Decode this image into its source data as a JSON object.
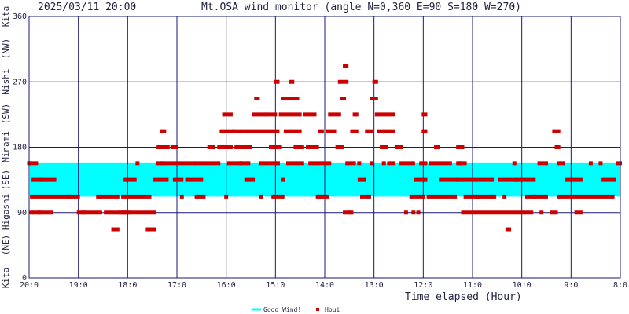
{
  "header": {
    "datetime": "2025/03/11 20:00",
    "title": "Mt.OSA wind monitor (angle N=0,360 E=90 S=180 W=270)"
  },
  "chart_data": {
    "type": "scatter",
    "title": "Mt.OSA wind monitor (angle N=0,360 E=90 S=180 W=270)",
    "xlabel": "Time elapsed (Hour)",
    "ylabel": "Kita (NE) Higashi (SE) Minami (SW) Nishi (NW) Kita",
    "y_side_labels": [
      "Kita",
      "(NE)",
      "Higashi",
      "(SE)",
      "Minami",
      "(SW)",
      "Nishi",
      "(NW)",
      "Kita"
    ],
    "ylim": [
      0,
      360
    ],
    "yticks": [
      0,
      90,
      180,
      270,
      360
    ],
    "xlim": [
      20,
      8
    ],
    "xticks": [
      "20:0",
      "19:0",
      "18:0",
      "17:0",
      "16:0",
      "15:0",
      "14:0",
      "13:0",
      "12:0",
      "11:0",
      "10:0",
      "9:0",
      "8:0"
    ],
    "grid": true,
    "good_wind_band": [
      112,
      158
    ],
    "band_color": "#00ffff",
    "point_color": "#cc0000",
    "grid_color": "#191970",
    "legend": {
      "position": "bottom-center",
      "entries": [
        {
          "label": "Good Wind!!",
          "color": "#00ffff",
          "shape": "line"
        },
        {
          "label": "Houi",
          "color": "#cc0000",
          "shape": "square"
        }
      ]
    },
    "series": [
      {
        "name": "Houi",
        "segments": [
          [
            20.0,
            19.85,
            158
          ],
          [
            19.92,
            19.48,
            135
          ],
          [
            19.95,
            19.0,
            112
          ],
          [
            19.0,
            18.55,
            90
          ],
          [
            19.9,
            19.55,
            90
          ],
          [
            18.55,
            18.2,
            112
          ],
          [
            18.45,
            18.0,
            90
          ],
          [
            18.3,
            18.2,
            67
          ],
          [
            18.1,
            17.55,
            112
          ],
          [
            18.15,
            17.45,
            90
          ],
          [
            18.05,
            17.85,
            135
          ],
          [
            17.6,
            17.45,
            67
          ],
          [
            17.4,
            16.65,
            158
          ],
          [
            17.45,
            17.2,
            135
          ],
          [
            17.38,
            17.28,
            180
          ],
          [
            17.32,
            17.25,
            202
          ],
          [
            17.25,
            17.18,
            180
          ],
          [
            17.1,
            17.0,
            180
          ],
          [
            17.05,
            16.9,
            135
          ],
          [
            16.6,
            16.15,
            158
          ],
          [
            16.8,
            16.5,
            135
          ],
          [
            16.55,
            16.45,
            112
          ],
          [
            16.35,
            16.25,
            180
          ],
          [
            16.15,
            15.9,
            180
          ],
          [
            16.1,
            15.85,
            202
          ],
          [
            16.05,
            15.9,
            225
          ],
          [
            15.85,
            15.6,
            202
          ],
          [
            15.8,
            15.5,
            180
          ],
          [
            15.95,
            15.6,
            158
          ],
          [
            15.6,
            15.45,
            135
          ],
          [
            15.55,
            15.2,
            202
          ],
          [
            15.45,
            15.25,
            225
          ],
          [
            15.4,
            15.35,
            247
          ],
          [
            15.2,
            15.0,
            225
          ],
          [
            15.15,
            14.95,
            202
          ],
          [
            15.1,
            14.9,
            180
          ],
          [
            15.3,
            15.0,
            158
          ],
          [
            15.0,
            14.95,
            270
          ],
          [
            15.05,
            14.85,
            112
          ],
          [
            14.9,
            14.5,
            225
          ],
          [
            14.85,
            14.55,
            247
          ],
          [
            14.7,
            14.65,
            270
          ],
          [
            14.8,
            14.5,
            202
          ],
          [
            14.6,
            14.45,
            180
          ],
          [
            14.75,
            14.45,
            158
          ],
          [
            14.4,
            14.2,
            225
          ],
          [
            14.35,
            14.15,
            180
          ],
          [
            14.3,
            13.9,
            158
          ],
          [
            14.1,
            14.05,
            202
          ],
          [
            14.15,
            13.95,
            112
          ],
          [
            13.9,
            13.7,
            225
          ],
          [
            13.95,
            13.8,
            202
          ],
          [
            13.75,
            13.65,
            180
          ],
          [
            13.7,
            13.55,
            270
          ],
          [
            13.6,
            13.55,
            292
          ],
          [
            13.65,
            13.6,
            247
          ],
          [
            13.55,
            13.4,
            158
          ],
          [
            13.45,
            13.35,
            202
          ],
          [
            13.4,
            13.35,
            225
          ],
          [
            13.6,
            13.45,
            90
          ],
          [
            13.3,
            13.2,
            135
          ],
          [
            13.25,
            13.15,
            112
          ],
          [
            13.15,
            13.05,
            202
          ],
          [
            13.05,
            12.95,
            247
          ],
          [
            13.0,
            12.95,
            270
          ],
          [
            12.95,
            12.6,
            225
          ],
          [
            12.9,
            12.6,
            202
          ],
          [
            12.85,
            12.75,
            180
          ],
          [
            12.7,
            12.6,
            158
          ],
          [
            12.55,
            12.45,
            180
          ],
          [
            12.45,
            12.2,
            158
          ],
          [
            12.25,
            12.0,
            112
          ],
          [
            12.15,
            11.95,
            135
          ],
          [
            12.05,
            11.95,
            158
          ],
          [
            12.0,
            11.95,
            225
          ],
          [
            12.0,
            11.95,
            202
          ],
          [
            11.75,
            11.7,
            180
          ],
          [
            11.9,
            11.35,
            112
          ],
          [
            11.85,
            11.45,
            158
          ],
          [
            11.65,
            11.3,
            135
          ],
          [
            11.3,
            11.2,
            180
          ],
          [
            11.3,
            11.15,
            158
          ],
          [
            11.3,
            10.6,
            135
          ],
          [
            11.15,
            10.8,
            112
          ],
          [
            11.2,
            9.8,
            90
          ],
          [
            10.3,
            10.25,
            67
          ],
          [
            10.75,
            10.55,
            112
          ],
          [
            10.45,
            10.1,
            135
          ],
          [
            10.1,
            9.75,
            135
          ],
          [
            9.9,
            9.5,
            112
          ],
          [
            9.65,
            9.5,
            158
          ],
          [
            9.4,
            9.3,
            90
          ],
          [
            9.35,
            9.25,
            202
          ],
          [
            9.3,
            9.25,
            180
          ],
          [
            9.2,
            9.15,
            158
          ],
          [
            9.1,
            8.8,
            135
          ],
          [
            9.25,
            8.15,
            112
          ],
          [
            8.9,
            8.8,
            90
          ],
          [
            8.35,
            8.2,
            135
          ],
          [
            8.05,
            8.0,
            158
          ]
        ],
        "points": [
          [
            20.0,
            158
          ],
          [
            19.95,
            90
          ],
          [
            19.8,
            90
          ],
          [
            19.75,
            135
          ],
          [
            19.2,
            112
          ],
          [
            18.9,
            90
          ],
          [
            18.6,
            112
          ],
          [
            17.8,
            158
          ],
          [
            17.3,
            158
          ],
          [
            16.9,
            112
          ],
          [
            16.6,
            112
          ],
          [
            16.0,
            112
          ],
          [
            15.3,
            112
          ],
          [
            15.7,
            158
          ],
          [
            15.55,
            158
          ],
          [
            14.95,
            158
          ],
          [
            14.85,
            135
          ],
          [
            14.1,
            112
          ],
          [
            13.5,
            90
          ],
          [
            13.3,
            158
          ],
          [
            13.1,
            112
          ],
          [
            13.05,
            158
          ],
          [
            12.8,
            158
          ],
          [
            12.35,
            90
          ],
          [
            12.2,
            90
          ],
          [
            12.1,
            90
          ],
          [
            11.25,
            158
          ],
          [
            10.9,
            112
          ],
          [
            10.6,
            112
          ],
          [
            10.35,
            112
          ],
          [
            10.15,
            158
          ],
          [
            9.75,
            112
          ],
          [
            9.6,
            90
          ],
          [
            9.25,
            158
          ],
          [
            8.6,
            158
          ],
          [
            8.4,
            158
          ],
          [
            8.12,
            135
          ]
        ]
      }
    ]
  }
}
